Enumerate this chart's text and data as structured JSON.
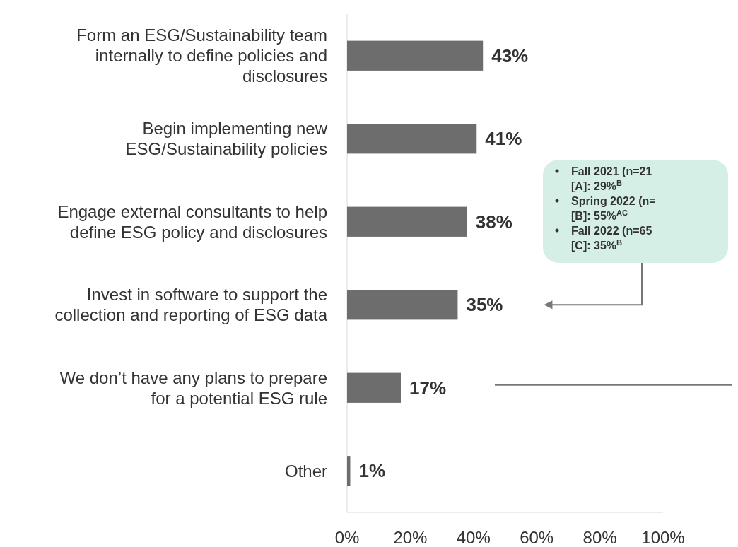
{
  "chart_data": {
    "type": "bar",
    "orientation": "horizontal",
    "categories": [
      "Form an ESG/Sustainability team internally to define policies and disclosures",
      "Begin implementing new ESG/Sustainability policies",
      "Engage external consultants to help define ESG policy and disclosures",
      "Invest in software to support the collection and reporting of ESG data",
      "We don’t have any plans to prepare for a potential ESG rule",
      "Other"
    ],
    "values": [
      43,
      41,
      38,
      35,
      17,
      1
    ],
    "value_labels": [
      "43%",
      "41%",
      "38%",
      "35%",
      "17%",
      "1%"
    ],
    "color": "#6d6d6d",
    "xlim": [
      0,
      100
    ],
    "xticks": [
      {
        "value": 0,
        "label": "0%"
      },
      {
        "value": 20,
        "label": "20%"
      },
      {
        "value": 40,
        "label": "40%"
      },
      {
        "value": 60,
        "label": "60%"
      },
      {
        "value": 80,
        "label": "80%"
      },
      {
        "value": 100,
        "label": "100%"
      }
    ],
    "annotations": [
      "Fall 2021 (n=21",
      "[A]: 29%$^{B}$",
      "Spring 2022 (n=",
      "[B]: 55%$^{AC}$",
      "Fall 2022 (n=65",
      "[C]:  35%$^{B}$"
    ],
    "grid": false
  }
}
